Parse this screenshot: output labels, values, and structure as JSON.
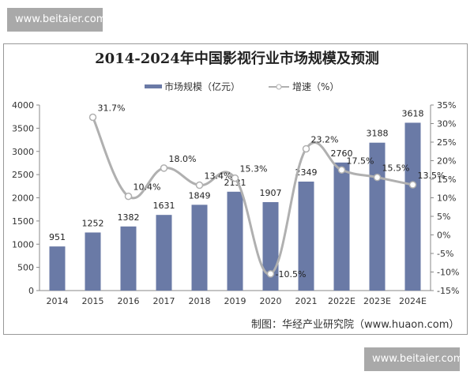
{
  "watermarks": [
    "www.beitaier.com",
    "www.beitaier.com"
  ],
  "credit": "制图：华经产业研究院（www.huaon.com）",
  "colors": {
    "bar": "#6a7aa6",
    "line": "#b0b0b0"
  },
  "chart_data": {
    "type": "bar+line",
    "title": "2014-2024年中国影视行业市场规模及预测",
    "categories": [
      "2014",
      "2015",
      "2016",
      "2017",
      "2018",
      "2019",
      "2020",
      "2021",
      "2022E",
      "2023E",
      "2024E"
    ],
    "series": [
      {
        "name": "市场规模（亿元）",
        "type": "bar",
        "axis": "left",
        "values": [
          951,
          1252,
          1382,
          1631,
          1849,
          2131,
          1907,
          2349,
          2760,
          3188,
          3618
        ],
        "labels": [
          "951",
          "1252",
          "1382",
          "1631",
          "1849",
          "2131",
          "1907",
          "2349",
          "2760",
          "3188",
          "3618"
        ]
      },
      {
        "name": "增速（%）",
        "type": "line",
        "axis": "right",
        "values": [
          null,
          31.7,
          10.4,
          18.0,
          13.4,
          15.3,
          -10.5,
          23.2,
          17.5,
          15.5,
          13.5
        ],
        "labels": [
          "",
          "31.7%",
          "10.4%",
          "18.0%",
          "13.4%",
          "15.3%",
          "-10.5%",
          "23.2%",
          "17.5%",
          "15.5%",
          "13.5%"
        ]
      }
    ],
    "ylim": [
      0,
      4000
    ],
    "yticks": [
      "0",
      "500",
      "1000",
      "1500",
      "2000",
      "2500",
      "3000",
      "3500",
      "4000"
    ],
    "y2lim": [
      -15,
      35
    ],
    "y2ticks": [
      "-15%",
      "-10%",
      "-5%",
      "0%",
      "5%",
      "10%",
      "15%",
      "20%",
      "25%",
      "30%",
      "35%"
    ],
    "grid": false,
    "legend": "top-center"
  }
}
